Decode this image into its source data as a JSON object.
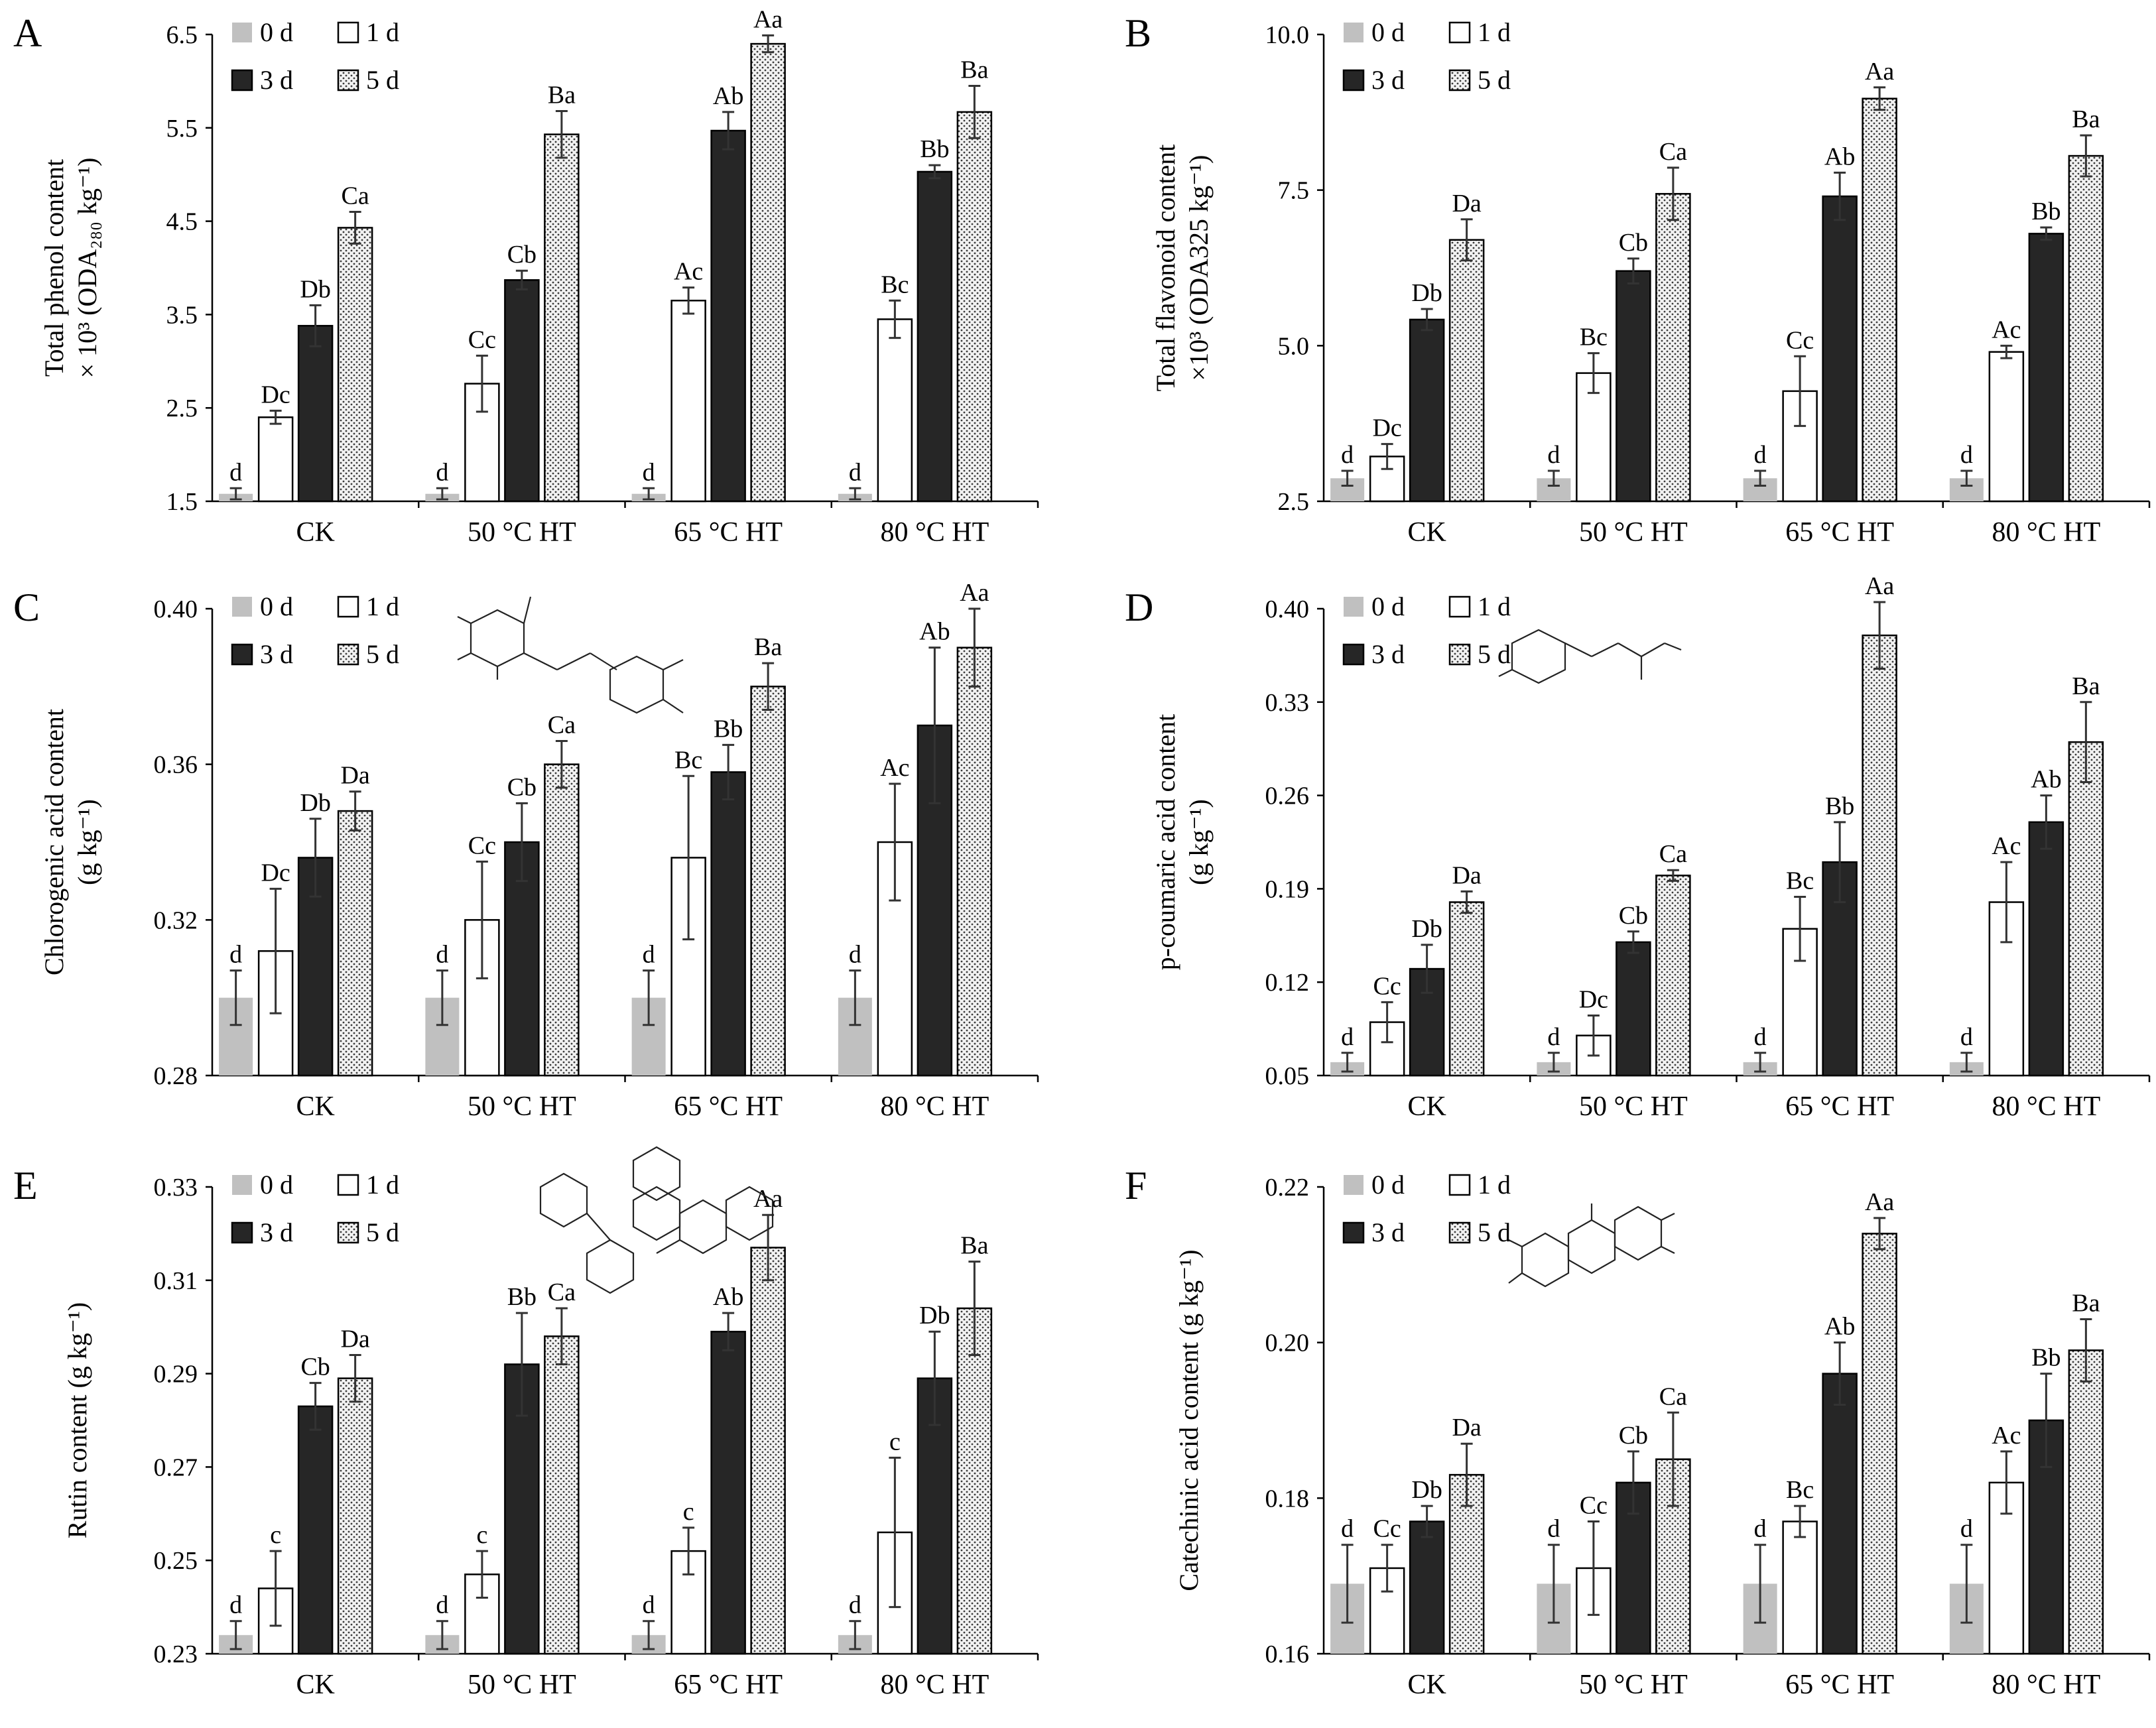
{
  "colors": {
    "d0": "#c0c0c0",
    "d1": "#ffffff",
    "d3": "#262626",
    "d5_bg": "#f2f2f2",
    "d5_dot": "#3a3a3a",
    "edge": "#000000"
  },
  "legend": [
    "0 d",
    "1 d",
    "3 d",
    "5 d"
  ],
  "chart_data": [
    {
      "panel": "A",
      "type": "bar",
      "ylabel_lines": [
        "Total phenol content",
        "× 10³ (ODA₂₈₀ kg⁻¹)"
      ],
      "ylim": [
        1.5,
        6.5
      ],
      "yticks": [
        "1.5",
        "2.5",
        "3.5",
        "4.5",
        "5.5",
        "6.5"
      ],
      "categories": [
        "CK",
        "50 °C HT",
        "65 °C HT",
        "80 °C HT"
      ],
      "series": [
        {
          "name": "0 d",
          "values": [
            1.58,
            1.58,
            1.58,
            1.58
          ],
          "errors": [
            0.06,
            0.06,
            0.06,
            0.06
          ],
          "labels": [
            "d",
            "d",
            "d",
            "d"
          ]
        },
        {
          "name": "1 d",
          "values": [
            2.4,
            2.76,
            3.65,
            3.45
          ],
          "errors": [
            0.07,
            0.3,
            0.14,
            0.2
          ],
          "labels": [
            "Dc",
            "Cc",
            "Ac",
            "Bc"
          ]
        },
        {
          "name": "3 d",
          "values": [
            3.38,
            3.87,
            5.47,
            5.03
          ],
          "errors": [
            0.22,
            0.1,
            0.2,
            0.07
          ],
          "labels": [
            "Db",
            "Cb",
            "Ab",
            "Bb"
          ]
        },
        {
          "name": "5 d",
          "values": [
            4.43,
            5.43,
            6.4,
            5.67
          ],
          "errors": [
            0.17,
            0.25,
            0.09,
            0.28
          ],
          "labels": [
            "Ca",
            "Ba",
            "Aa",
            "Ba"
          ]
        }
      ]
    },
    {
      "panel": "B",
      "type": "bar",
      "ylabel_lines": [
        "Total flavonoid content",
        "×10³ (ODA325 kg⁻¹)"
      ],
      "ylim": [
        2.5,
        10.0
      ],
      "yticks": [
        "2.5",
        "5.0",
        "7.5",
        "10.0"
      ],
      "categories": [
        "CK",
        "50 °C HT",
        "65 °C HT",
        "80 °C HT"
      ],
      "series": [
        {
          "name": "0 d",
          "values": [
            2.87,
            2.87,
            2.87,
            2.87
          ],
          "errors": [
            0.12,
            0.12,
            0.12,
            0.12
          ],
          "labels": [
            "d",
            "d",
            "d",
            "d"
          ]
        },
        {
          "name": "1 d",
          "values": [
            3.22,
            4.56,
            4.27,
            4.9
          ],
          "errors": [
            0.2,
            0.32,
            0.56,
            0.1
          ],
          "labels": [
            "Dc",
            "Bc",
            "Cc",
            "Ac"
          ]
        },
        {
          "name": "3 d",
          "values": [
            5.42,
            6.2,
            7.4,
            6.8
          ],
          "errors": [
            0.17,
            0.2,
            0.38,
            0.1
          ],
          "labels": [
            "Db",
            "Cb",
            "Ab",
            "Bb"
          ]
        },
        {
          "name": "5 d",
          "values": [
            6.7,
            7.44,
            8.97,
            8.05
          ],
          "errors": [
            0.33,
            0.42,
            0.18,
            0.33
          ],
          "labels": [
            "Da",
            "Ca",
            "Aa",
            "Ba"
          ]
        }
      ]
    },
    {
      "panel": "C",
      "type": "bar",
      "ylabel_lines": [
        "Chlorogenic acid content",
        "(g kg⁻¹)"
      ],
      "ylim": [
        0.28,
        0.4
      ],
      "yticks": [
        "0.28",
        "0.32",
        "0.36",
        "0.40"
      ],
      "categories": [
        "CK",
        "50 °C HT",
        "65 °C HT",
        "80 °C HT"
      ],
      "series": [
        {
          "name": "0 d",
          "values": [
            0.3,
            0.3,
            0.3,
            0.3
          ],
          "errors": [
            0.007,
            0.007,
            0.007,
            0.007
          ],
          "labels": [
            "d",
            "d",
            "d",
            "d"
          ]
        },
        {
          "name": "1 d",
          "values": [
            0.312,
            0.32,
            0.336,
            0.34
          ],
          "errors": [
            0.016,
            0.015,
            0.021,
            0.015
          ],
          "labels": [
            "Dc",
            "Cc",
            "Bc",
            "Ac"
          ]
        },
        {
          "name": "3 d",
          "values": [
            0.336,
            0.34,
            0.358,
            0.37
          ],
          "errors": [
            0.01,
            0.01,
            0.007,
            0.02
          ],
          "labels": [
            "Db",
            "Cb",
            "Bb",
            "Ab"
          ]
        },
        {
          "name": "5 d",
          "values": [
            0.348,
            0.36,
            0.38,
            0.39
          ],
          "errors": [
            0.005,
            0.006,
            0.006,
            0.01
          ],
          "labels": [
            "Da",
            "Ca",
            "Ba",
            "Aa"
          ]
        }
      ]
    },
    {
      "panel": "D",
      "type": "bar",
      "ylabel_lines": [
        "p-coumaric acid content",
        "(g kg⁻¹)"
      ],
      "ylim": [
        0.05,
        0.4
      ],
      "yticks": [
        "0.05",
        "0.12",
        "0.19",
        "0.26",
        "0.33",
        "0.40"
      ],
      "categories": [
        "CK",
        "50 °C HT",
        "65 °C HT",
        "80 °C HT"
      ],
      "series": [
        {
          "name": "0 d",
          "values": [
            0.06,
            0.06,
            0.06,
            0.06
          ],
          "errors": [
            0.007,
            0.007,
            0.007,
            0.007
          ],
          "labels": [
            "d",
            "d",
            "d",
            "d"
          ]
        },
        {
          "name": "1 d",
          "values": [
            0.09,
            0.08,
            0.16,
            0.18
          ],
          "errors": [
            0.015,
            0.015,
            0.024,
            0.03
          ],
          "labels": [
            "Cc",
            "Dc",
            "Bc",
            "Ac"
          ]
        },
        {
          "name": "3 d",
          "values": [
            0.13,
            0.15,
            0.21,
            0.24
          ],
          "errors": [
            0.018,
            0.008,
            0.03,
            0.02
          ],
          "labels": [
            "Db",
            "Cb",
            "Bb",
            "Ab"
          ]
        },
        {
          "name": "5 d",
          "values": [
            0.18,
            0.2,
            0.38,
            0.3
          ],
          "errors": [
            0.008,
            0.004,
            0.025,
            0.03
          ],
          "labels": [
            "Da",
            "Ca",
            "Aa",
            "Ba"
          ]
        }
      ]
    },
    {
      "panel": "E",
      "type": "bar",
      "ylabel_lines": [
        "Rutin content (g kg⁻¹)"
      ],
      "ylim": [
        0.23,
        0.33
      ],
      "yticks": [
        "0.23",
        "0.25",
        "0.27",
        "0.29",
        "0.31",
        "0.33"
      ],
      "categories": [
        "CK",
        "50 °C HT",
        "65 °C HT",
        "80 °C HT"
      ],
      "series": [
        {
          "name": "0 d",
          "values": [
            0.234,
            0.234,
            0.234,
            0.234
          ],
          "errors": [
            0.003,
            0.003,
            0.003,
            0.003
          ],
          "labels": [
            "d",
            "d",
            "d",
            "d"
          ]
        },
        {
          "name": "1 d",
          "values": [
            0.244,
            0.247,
            0.252,
            0.256
          ],
          "errors": [
            0.008,
            0.005,
            0.005,
            0.016
          ],
          "labels": [
            "c",
            "c",
            "c",
            "c"
          ]
        },
        {
          "name": "3 d",
          "values": [
            0.283,
            0.292,
            0.299,
            0.289
          ],
          "errors": [
            0.005,
            0.011,
            0.004,
            0.01
          ],
          "labels": [
            "Cb",
            "Bb",
            "Ab",
            "Db"
          ]
        },
        {
          "name": "5 d",
          "values": [
            0.289,
            0.298,
            0.317,
            0.304
          ],
          "errors": [
            0.005,
            0.006,
            0.007,
            0.01
          ],
          "labels": [
            "Da",
            "Ca",
            "Aa",
            "Ba"
          ]
        }
      ]
    },
    {
      "panel": "F",
      "type": "bar",
      "ylabel_lines": [
        "Catechinic acid content (g kg⁻¹)"
      ],
      "ylim": [
        0.16,
        0.22
      ],
      "yticks": [
        "0.16",
        "0.18",
        "0.20",
        "0.22"
      ],
      "categories": [
        "CK",
        "50 °C HT",
        "65 °C HT",
        "80 °C HT"
      ],
      "series": [
        {
          "name": "0 d",
          "values": [
            0.169,
            0.169,
            0.169,
            0.169
          ],
          "errors": [
            0.005,
            0.005,
            0.005,
            0.005
          ],
          "labels": [
            "d",
            "d",
            "d",
            "d"
          ]
        },
        {
          "name": "1 d",
          "values": [
            0.171,
            0.171,
            0.177,
            0.182
          ],
          "errors": [
            0.003,
            0.006,
            0.002,
            0.004
          ],
          "labels": [
            "Cc",
            "Cc",
            "Bc",
            "Ac"
          ]
        },
        {
          "name": "3 d",
          "values": [
            0.177,
            0.182,
            0.196,
            0.19
          ],
          "errors": [
            0.002,
            0.004,
            0.004,
            0.006
          ],
          "labels": [
            "Db",
            "Cb",
            "Ab",
            "Bb"
          ]
        },
        {
          "name": "5 d",
          "values": [
            0.183,
            0.185,
            0.214,
            0.199
          ],
          "errors": [
            0.004,
            0.006,
            0.002,
            0.004
          ],
          "labels": [
            "Da",
            "Ca",
            "Aa",
            "Ba"
          ]
        }
      ]
    }
  ]
}
